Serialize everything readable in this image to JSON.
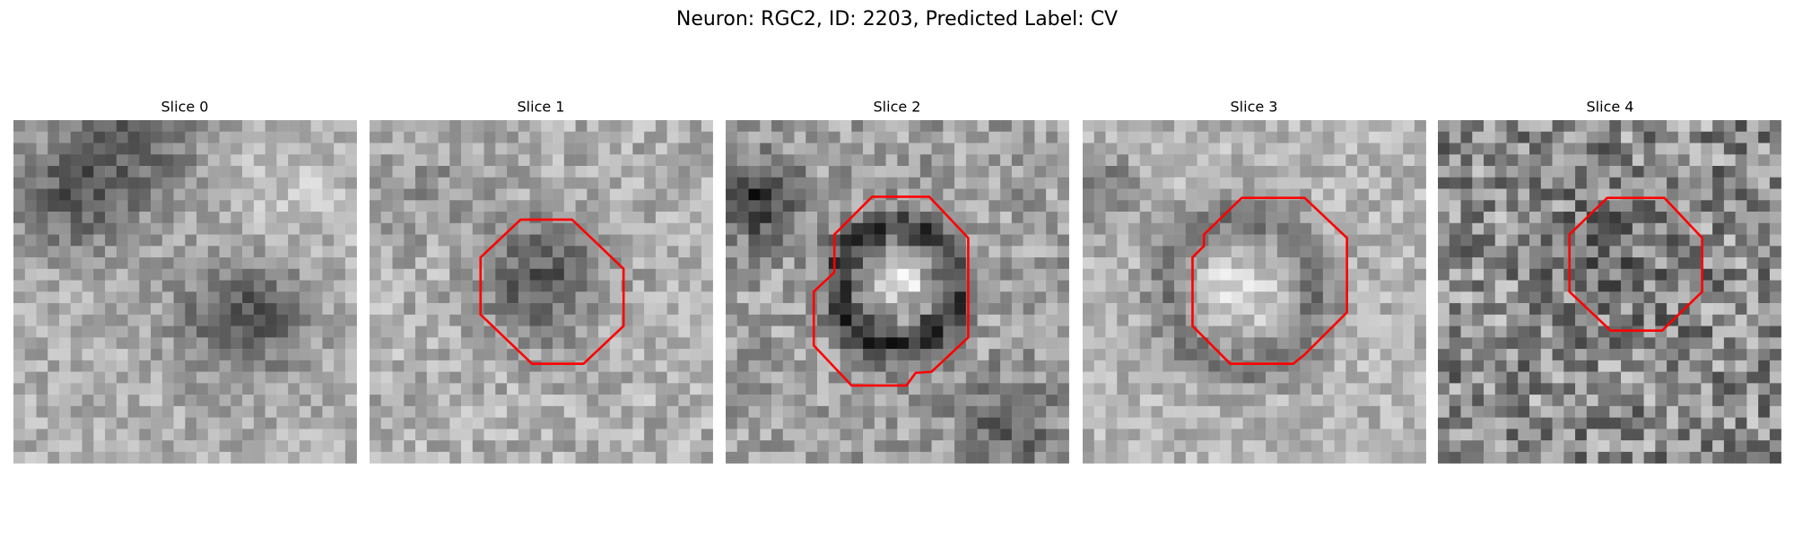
{
  "title": "Neuron: RGC2, ID: 2203, Predicted Label: CV",
  "panels": [
    {
      "title": "Slice 0"
    },
    {
      "title": "Slice 1"
    },
    {
      "title": "Slice 2"
    },
    {
      "title": "Slice 3"
    },
    {
      "title": "Slice 4"
    }
  ]
}
